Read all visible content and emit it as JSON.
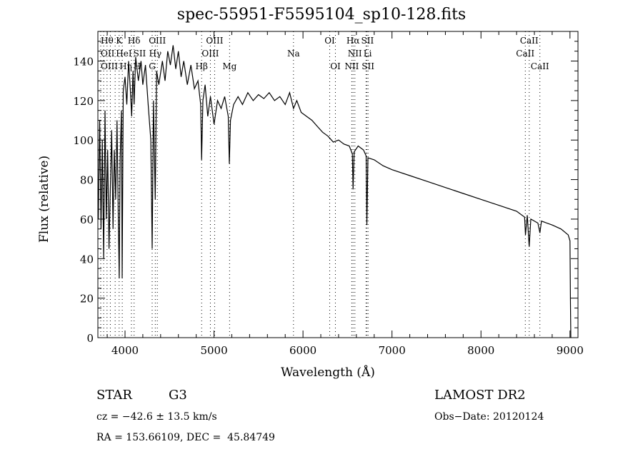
{
  "chart_data": {
    "type": "line",
    "title": "spec-55951-F5595104_sp10-128.fits",
    "xlabel": "Wavelength (Å)",
    "ylabel": "Flux (relative)",
    "xlim": [
      3695,
      9090
    ],
    "ylim": [
      0,
      155
    ],
    "xticks": [
      4000,
      5000,
      6000,
      7000,
      8000,
      9000
    ],
    "yticks": [
      0,
      20,
      40,
      60,
      80,
      100,
      120,
      140
    ],
    "grid": false,
    "series": [
      {
        "name": "spectrum",
        "points": [
          [
            3700,
            60
          ],
          [
            3715,
            110
          ],
          [
            3730,
            55
          ],
          [
            3745,
            100
          ],
          [
            3760,
            40
          ],
          [
            3775,
            115
          ],
          [
            3790,
            60
          ],
          [
            3805,
            95
          ],
          [
            3820,
            45
          ],
          [
            3835,
            75
          ],
          [
            3850,
            105
          ],
          [
            3865,
            55
          ],
          [
            3880,
            95
          ],
          [
            3895,
            70
          ],
          [
            3910,
            110
          ],
          [
            3925,
            60
          ],
          [
            3935,
            30
          ],
          [
            3945,
            90
          ],
          [
            3960,
            115
          ],
          [
            3968,
            30
          ],
          [
            3980,
            125
          ],
          [
            4000,
            132
          ],
          [
            4020,
            118
          ],
          [
            4040,
            140
          ],
          [
            4060,
            125
          ],
          [
            4075,
            112
          ],
          [
            4090,
            135
          ],
          [
            4102,
            118
          ],
          [
            4120,
            142
          ],
          [
            4150,
            130
          ],
          [
            4180,
            140
          ],
          [
            4200,
            128
          ],
          [
            4230,
            138
          ],
          [
            4260,
            118
          ],
          [
            4290,
            100
          ],
          [
            4305,
            45
          ],
          [
            4320,
            120
          ],
          [
            4340,
            70
          ],
          [
            4355,
            135
          ],
          [
            4380,
            128
          ],
          [
            4420,
            140
          ],
          [
            4450,
            130
          ],
          [
            4480,
            145
          ],
          [
            4510,
            138
          ],
          [
            4540,
            148
          ],
          [
            4570,
            136
          ],
          [
            4600,
            145
          ],
          [
            4630,
            132
          ],
          [
            4660,
            140
          ],
          [
            4700,
            128
          ],
          [
            4740,
            138
          ],
          [
            4780,
            126
          ],
          [
            4820,
            130
          ],
          [
            4850,
            118
          ],
          [
            4861,
            90
          ],
          [
            4875,
            120
          ],
          [
            4900,
            128
          ],
          [
            4930,
            112
          ],
          [
            4960,
            122
          ],
          [
            5000,
            108
          ],
          [
            5040,
            120
          ],
          [
            5080,
            116
          ],
          [
            5120,
            122
          ],
          [
            5160,
            112
          ],
          [
            5172,
            88
          ],
          [
            5185,
            110
          ],
          [
            5220,
            118
          ],
          [
            5270,
            122
          ],
          [
            5320,
            118
          ],
          [
            5380,
            124
          ],
          [
            5440,
            120
          ],
          [
            5500,
            123
          ],
          [
            5560,
            121
          ],
          [
            5620,
            124
          ],
          [
            5680,
            120
          ],
          [
            5740,
            122
          ],
          [
            5800,
            118
          ],
          [
            5850,
            124
          ],
          [
            5893,
            116
          ],
          [
            5930,
            120
          ],
          [
            5980,
            114
          ],
          [
            6040,
            112
          ],
          [
            6100,
            110
          ],
          [
            6160,
            107
          ],
          [
            6220,
            104
          ],
          [
            6280,
            102
          ],
          [
            6340,
            99
          ],
          [
            6400,
            100
          ],
          [
            6460,
            98
          ],
          [
            6520,
            97
          ],
          [
            6555,
            93
          ],
          [
            6563,
            75
          ],
          [
            6575,
            94
          ],
          [
            6620,
            97
          ],
          [
            6680,
            95
          ],
          [
            6710,
            92
          ],
          [
            6718,
            57
          ],
          [
            6730,
            91
          ],
          [
            6800,
            90
          ],
          [
            6900,
            87
          ],
          [
            7000,
            85
          ],
          [
            7200,
            82
          ],
          [
            7400,
            79
          ],
          [
            7600,
            76
          ],
          [
            7800,
            73
          ],
          [
            8000,
            70
          ],
          [
            8200,
            67
          ],
          [
            8400,
            64
          ],
          [
            8490,
            61
          ],
          [
            8500,
            52
          ],
          [
            8520,
            62
          ],
          [
            8542,
            46
          ],
          [
            8560,
            60
          ],
          [
            8640,
            58
          ],
          [
            8662,
            53
          ],
          [
            8680,
            59
          ],
          [
            8800,
            57
          ],
          [
            8900,
            55
          ],
          [
            8980,
            52
          ],
          [
            9000,
            49
          ],
          [
            9005,
            20
          ],
          [
            9010,
            0
          ]
        ]
      }
    ],
    "lines": [
      {
        "label": "Hθ",
        "wave": 3798,
        "row": 1
      },
      {
        "label": "K",
        "wave": 3934,
        "row": 1
      },
      {
        "label": "Hδ",
        "wave": 4102,
        "row": 1
      },
      {
        "label": "OIII",
        "wave": 4363,
        "row": 1
      },
      {
        "label": "OIII",
        "wave": 5007,
        "row": 1
      },
      {
        "label": "OI",
        "wave": 6300,
        "row": 1
      },
      {
        "label": "Hα",
        "wave": 6563,
        "row": 1
      },
      {
        "label": "SII",
        "wave": 6717,
        "row": 1
      },
      {
        "label": "CaII",
        "wave": 8542,
        "row": 1
      },
      {
        "label": "OII",
        "wave": 3727,
        "row": 2
      },
      {
        "label": "HeI",
        "wave": 3889,
        "row": 2
      },
      {
        "label": "SII",
        "wave": 4072,
        "row": 2
      },
      {
        "label": "Hγ",
        "wave": 4340,
        "row": 2
      },
      {
        "label": "OIII",
        "wave": 4959,
        "row": 2
      },
      {
        "label": "Na",
        "wave": 5893,
        "row": 2
      },
      {
        "label": "NII",
        "wave": 6583,
        "row": 2
      },
      {
        "label": "Li",
        "wave": 6708,
        "row": 2
      },
      {
        "label": "CaII",
        "wave": 8498,
        "row": 2
      },
      {
        "label": "OIII",
        "wave": 3760,
        "row": 3
      },
      {
        "label": "Hη",
        "wave": 3835,
        "row": 3
      },
      {
        "label": "H",
        "wave": 3969,
        "row": 3
      },
      {
        "label": "G",
        "wave": 4305,
        "row": 3
      },
      {
        "label": "Hβ",
        "wave": 4861,
        "row": 3
      },
      {
        "label": "Mg",
        "wave": 5175,
        "row": 3
      },
      {
        "label": "OI",
        "wave": 6364,
        "row": 3
      },
      {
        "label": "NII",
        "wave": 6548,
        "row": 3
      },
      {
        "label": "SII",
        "wave": 6731,
        "row": 3
      },
      {
        "label": "CaII",
        "wave": 8662,
        "row": 3
      }
    ]
  },
  "info": {
    "object_class": "STAR",
    "subclass": "G3",
    "survey": "LAMOST DR2",
    "redshift": "cz = −42.6 ± 13.5 km/s",
    "obs_date": "Obs−Date: 20120124",
    "coords": "RA = 153.66109, DEC =  45.84749"
  }
}
